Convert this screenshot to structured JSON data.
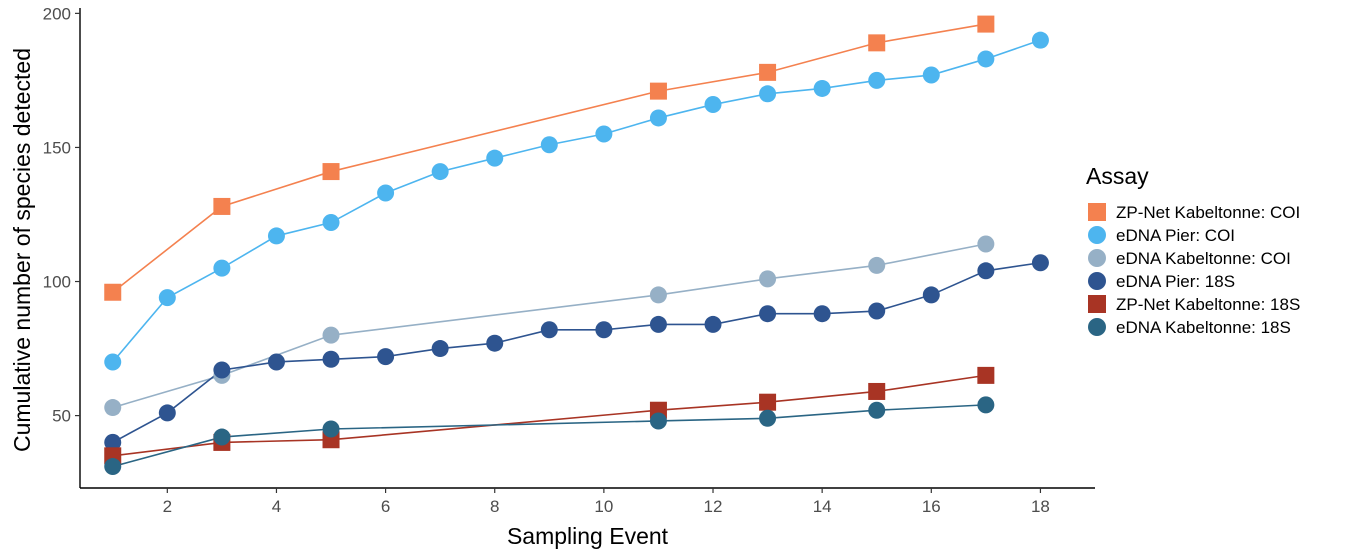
{
  "chart_data": {
    "type": "line",
    "xlabel": "Sampling Event",
    "ylabel": "Cumulative number of species detected",
    "xlim": [
      0.4,
      19.0
    ],
    "ylim": [
      23,
      202
    ],
    "x_ticks": [
      2,
      4,
      6,
      8,
      10,
      12,
      14,
      16,
      18
    ],
    "y_ticks": [
      50,
      100,
      150,
      200
    ],
    "grid": false,
    "legend": {
      "title": "Assay",
      "position": "right"
    },
    "series": [
      {
        "name": "ZP-Net Kabeltonne: COI",
        "color": "#F4814F",
        "marker": "square",
        "x": [
          1,
          3,
          5,
          11,
          13,
          15,
          17
        ],
        "y": [
          96,
          128,
          141,
          171,
          178,
          189,
          196
        ]
      },
      {
        "name": "eDNA Pier: COI",
        "color": "#4DB5EF",
        "marker": "circle",
        "x": [
          1,
          2,
          3,
          4,
          5,
          6,
          7,
          8,
          9,
          10,
          11,
          12,
          13,
          14,
          15,
          16,
          17,
          18
        ],
        "y": [
          70,
          94,
          105,
          117,
          122,
          133,
          141,
          146,
          151,
          155,
          161,
          166,
          170,
          172,
          175,
          177,
          183,
          190
        ]
      },
      {
        "name": "eDNA Kabeltonne: COI",
        "color": "#96B0C6",
        "marker": "circle",
        "x": [
          1,
          3,
          5,
          11,
          13,
          15,
          17
        ],
        "y": [
          53,
          65,
          80,
          95,
          101,
          106,
          114
        ]
      },
      {
        "name": "eDNA Pier: 18S",
        "color": "#2E5490",
        "marker": "circle",
        "x": [
          1,
          2,
          3,
          4,
          5,
          6,
          7,
          8,
          9,
          10,
          11,
          12,
          13,
          14,
          15,
          16,
          17,
          18
        ],
        "y": [
          40,
          51,
          67,
          70,
          71,
          72,
          75,
          77,
          82,
          82,
          84,
          84,
          88,
          88,
          89,
          95,
          104,
          107
        ]
      },
      {
        "name": "ZP-Net Kabeltonne: 18S",
        "color": "#A83424",
        "marker": "square",
        "x": [
          1,
          3,
          5,
          11,
          13,
          15,
          17
        ],
        "y": [
          35,
          40,
          41,
          52,
          55,
          59,
          65
        ]
      },
      {
        "name": "eDNA Kabeltonne: 18S",
        "color": "#2A6584",
        "marker": "circle",
        "x": [
          1,
          3,
          5,
          11,
          13,
          15,
          17
        ],
        "y": [
          31,
          42,
          45,
          48,
          49,
          52,
          54
        ]
      }
    ]
  }
}
